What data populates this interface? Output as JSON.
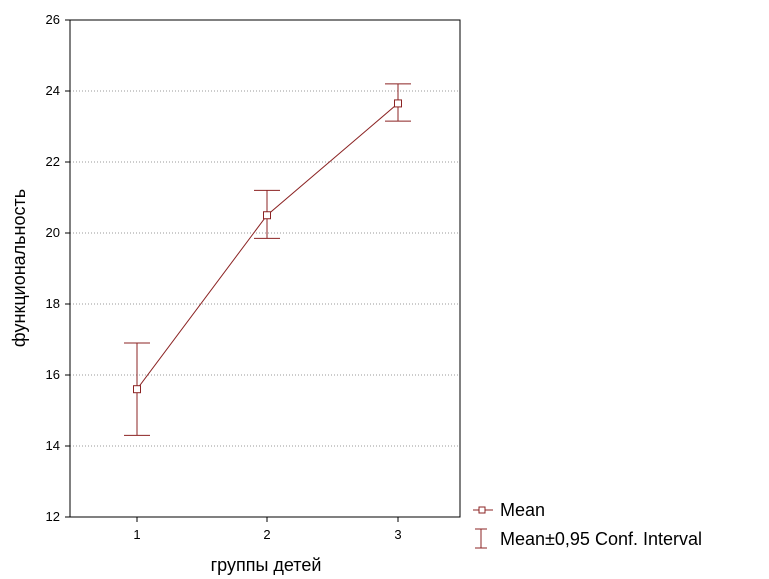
{
  "chart_data": {
    "type": "line",
    "title": "",
    "xlabel": "группы детей",
    "ylabel": "функциональность",
    "categories": [
      "1",
      "2",
      "3"
    ],
    "x_tick_labels": [
      "1",
      "2",
      "3"
    ],
    "y_tick_labels": [
      "12",
      "14",
      "16",
      "18",
      "20",
      "22",
      "24",
      "26"
    ],
    "ylim": [
      12,
      26
    ],
    "grid": "horizontal-dotted",
    "legend_position": "bottom-right, outside plot",
    "series": [
      {
        "name": "Mean",
        "values": [
          15.6,
          20.5,
          23.65
        ],
        "ci_lower": [
          14.3,
          19.85,
          23.15
        ],
        "ci_upper": [
          16.9,
          21.2,
          24.2
        ]
      }
    ],
    "legend": [
      {
        "label": "Mean",
        "marker": "square"
      },
      {
        "label": "Mean±0,95 Conf. Interval",
        "marker": "error-bar"
      }
    ],
    "colors": {
      "series": "#8b2323",
      "frame": "#000000",
      "grid": "#9a9a9a"
    }
  }
}
